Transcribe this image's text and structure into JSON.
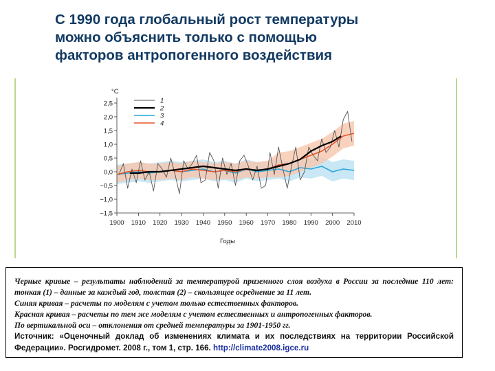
{
  "slide": {
    "title_lines": [
      "С 1990 года глобальный рост температуры",
      "можно объяснить только с помощью",
      "факторов антропогенного воздействия"
    ]
  },
  "caption": {
    "line1": "Черные кривые – результаты наблюдений за температурой приземного слоя воздуха в России за последние 110 лет: тонкая (1) – данные за каждый год, толстая (2) – скользящее осреднение за 11 лет.",
    "line2": "Синяя кривая – расчеты по моделям с учетом только естественных факторов.",
    "line3": "Красная кривая – расчеты по тем же моделям с учетом естественных и антропогенных факторов.",
    "line4": "По вертикальной оси – отклонения от средней температуры за 1901-1950 гг.",
    "source_text": "Источник: «Оценочный доклад об изменениях климата и их последствиях на территории Российской Федерации». Росгидромет. 2008 г., том 1, стр. 166. ",
    "source_link": "http://climate2008.igce.ru"
  },
  "chart_data": {
    "type": "line",
    "ylabel": "°C",
    "xlabel": "Годы",
    "xlim": [
      1900,
      2010
    ],
    "ylim": [
      -1.5,
      2.5
    ],
    "xticks": [
      1900,
      1910,
      1920,
      1930,
      1940,
      1950,
      1960,
      1970,
      1980,
      1990,
      2000,
      2010
    ],
    "xtick_labels": [
      "1900",
      "1910",
      "1920",
      "1930",
      "1940",
      "1950",
      "1960",
      "1970",
      "1980",
      "1990",
      "2000",
      "2010"
    ],
    "yticks": [
      2.5,
      2.0,
      1.5,
      1.0,
      0.5,
      0.0,
      -0.5,
      -1.0,
      -1.5
    ],
    "ytick_labels": [
      "2,5",
      "2,0",
      "1,5",
      "1,0",
      "0,5",
      "0,0",
      "−0,5",
      "−1,0",
      "−1,5"
    ],
    "legend_position": "top-left",
    "series": [
      {
        "name": "1",
        "color": "#555555",
        "x": [
          1901,
          1903,
          1905,
          1907,
          1909,
          1911,
          1913,
          1915,
          1917,
          1919,
          1921,
          1923,
          1925,
          1927,
          1929,
          1931,
          1933,
          1935,
          1937,
          1939,
          1941,
          1943,
          1945,
          1947,
          1949,
          1951,
          1953,
          1955,
          1957,
          1959,
          1961,
          1963,
          1965,
          1967,
          1969,
          1971,
          1973,
          1975,
          1977,
          1979,
          1981,
          1983,
          1985,
          1987,
          1989,
          1991,
          1993,
          1995,
          1997,
          1999,
          2001,
          2003,
          2005,
          2007,
          2009
        ],
        "y": [
          -0.1,
          0.3,
          -0.6,
          0.1,
          -0.4,
          0.4,
          -0.3,
          0.0,
          -0.7,
          0.3,
          0.1,
          -0.2,
          0.5,
          -0.1,
          -0.8,
          0.4,
          0.1,
          0.3,
          0.6,
          -0.4,
          -0.3,
          0.7,
          0.4,
          -0.6,
          0.5,
          -0.1,
          0.3,
          -0.5,
          0.4,
          0.6,
          0.2,
          -0.3,
          0.2,
          -0.6,
          -0.5,
          0.7,
          -0.1,
          0.9,
          0.1,
          -0.6,
          0.2,
          0.9,
          -0.3,
          0.0,
          0.9,
          0.6,
          0.4,
          1.2,
          0.7,
          0.9,
          1.5,
          0.9,
          1.9,
          2.2,
          1.1
        ]
      },
      {
        "name": "2",
        "color": "#000000",
        "x": [
          1906,
          1910,
          1915,
          1920,
          1925,
          1930,
          1935,
          1940,
          1945,
          1950,
          1955,
          1960,
          1965,
          1970,
          1975,
          1980,
          1985,
          1990,
          1995,
          2000,
          2004
        ],
        "y": [
          -0.05,
          -0.05,
          0.0,
          0.0,
          0.05,
          0.1,
          0.15,
          0.2,
          0.15,
          0.1,
          0.05,
          0.1,
          0.05,
          0.1,
          0.2,
          0.3,
          0.45,
          0.75,
          0.95,
          1.1,
          1.3
        ]
      },
      {
        "name": "3",
        "color": "#2aa6d8",
        "x": [
          1900,
          1905,
          1910,
          1915,
          1920,
          1925,
          1930,
          1935,
          1940,
          1945,
          1950,
          1955,
          1960,
          1965,
          1970,
          1975,
          1980,
          1985,
          1990,
          1995,
          2000,
          2005,
          2010
        ],
        "y": [
          -0.1,
          -0.05,
          0.0,
          -0.05,
          0.0,
          0.05,
          0.0,
          0.05,
          0.1,
          0.0,
          0.05,
          -0.05,
          0.1,
          0.0,
          0.05,
          0.1,
          0.0,
          0.15,
          0.1,
          0.2,
          0.0,
          0.1,
          0.05
        ]
      },
      {
        "name": "4",
        "color": "#e8552a",
        "x": [
          1900,
          1905,
          1910,
          1915,
          1920,
          1925,
          1930,
          1935,
          1940,
          1945,
          1950,
          1955,
          1960,
          1965,
          1970,
          1975,
          1980,
          1985,
          1990,
          1995,
          2000,
          2005,
          2010
        ],
        "y": [
          -0.1,
          0.0,
          0.05,
          0.0,
          0.0,
          0.05,
          0.0,
          0.1,
          0.05,
          0.0,
          0.05,
          0.0,
          0.1,
          0.05,
          0.1,
          0.25,
          0.3,
          0.45,
          0.6,
          0.75,
          1.0,
          1.3,
          1.4
        ]
      }
    ]
  },
  "colors": {
    "title": "#123a62",
    "frame": "#b9d98b",
    "blue_band": "#bfe3f2",
    "red_band": "#f7c7ae"
  }
}
